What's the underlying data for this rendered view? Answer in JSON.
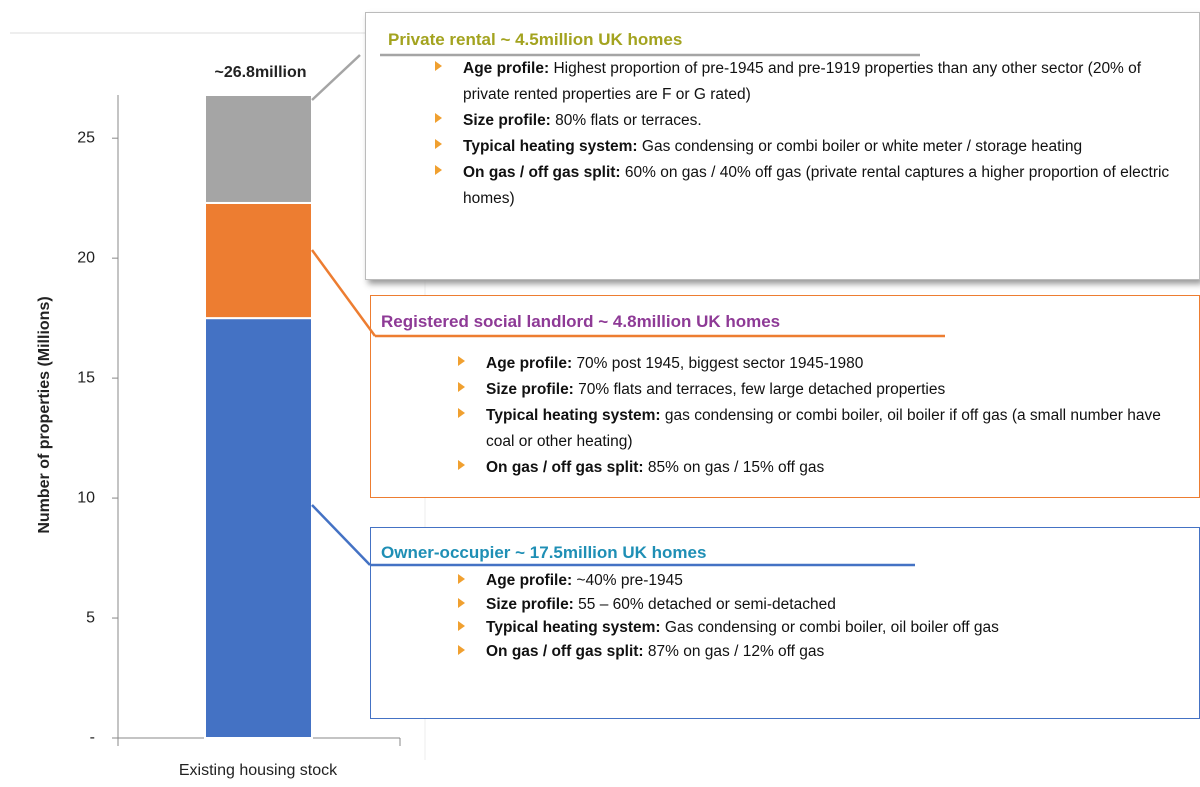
{
  "chart_data": {
    "type": "bar",
    "stacked": true,
    "categories": [
      "Existing housing stock"
    ],
    "series": [
      {
        "color": "#4472c4",
        "values": [
          17.5
        ]
      },
      {
        "color": "#ed7d31",
        "values": [
          4.8
        ]
      },
      {
        "color": "#a5a5a5",
        "values": [
          4.5
        ]
      }
    ],
    "total_label": "~26.8million",
    "ylabel": "Number of properties (Millions)",
    "ylim": [
      0,
      26.8
    ],
    "yticks": [
      {
        "value": 0,
        "label": "-"
      },
      5,
      10,
      15,
      20,
      25
    ],
    "annotations": [
      {
        "title": "Private rental ~ 4.5million UK homes",
        "color": "#a3a31f",
        "line_color": "#a5a5a5",
        "bullets": [
          {
            "label": "Age profile:",
            "text": "Highest proportion of pre-1945 and pre-1919 properties than any other sector (20% of private rented properties are F or G rated)"
          },
          {
            "label": "Size profile:",
            "text": "80% flats or terraces."
          },
          {
            "label": "Typical heating system:",
            "text": "Gas condensing or combi boiler or white meter / storage heating"
          },
          {
            "label": "On gas / off gas split:",
            "text": "60% on gas / 40% off gas (private rental captures a higher proportion of electric homes)"
          }
        ]
      },
      {
        "title": "Registered social landlord ~ 4.8million UK homes",
        "color": "#8e3a96",
        "line_color": "#ed7d31",
        "bullets": [
          {
            "label": "Age profile:",
            "text": "70% post 1945, biggest sector 1945-1980"
          },
          {
            "label": "Size profile:",
            "text": "70% flats and terraces, few large detached properties"
          },
          {
            "label": "Typical heating system:",
            "text": "gas condensing or combi boiler, oil boiler if off gas (a small number have coal or other heating)"
          },
          {
            "label": "On gas / off gas split:",
            "text": "85% on gas / 15% off gas"
          }
        ]
      },
      {
        "title": "Owner-occupier ~ 17.5million UK homes",
        "color": "#1f8fb5",
        "line_color": "#4472c4",
        "bullets": [
          {
            "label": "Age profile:",
            "text": "~40% pre-1945"
          },
          {
            "label": "Size profile:",
            "text": "55 – 60% detached or semi-detached"
          },
          {
            "label": "Typical heating system:",
            "text": "Gas condensing or combi boiler, oil boiler off gas"
          },
          {
            "label": "On gas / off gas split:",
            "text": "87% on gas / 12% off gas"
          }
        ]
      }
    ]
  }
}
